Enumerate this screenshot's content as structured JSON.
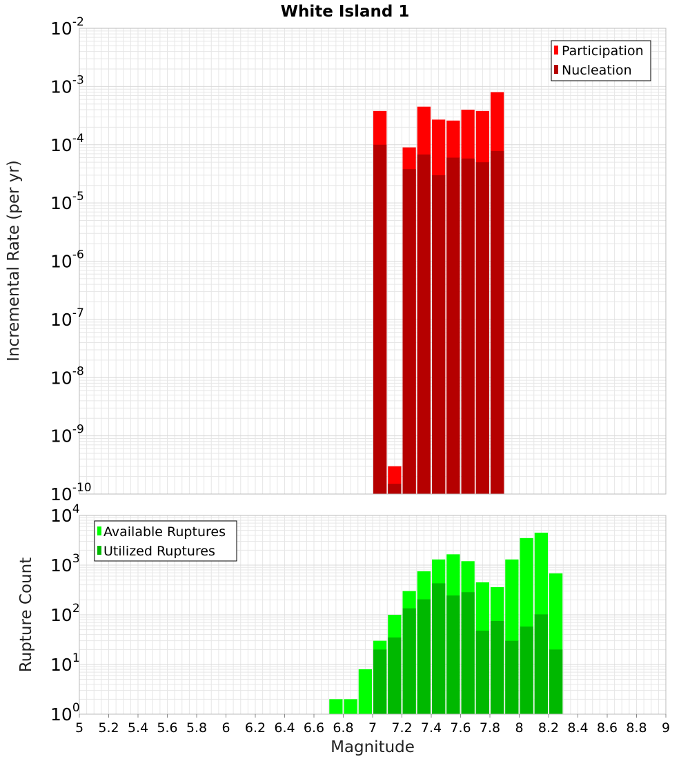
{
  "title": "White Island 1",
  "xlabel": "Magnitude",
  "x_ticks": [
    "5",
    "5.2",
    "5.4",
    "5.6",
    "5.8",
    "6",
    "6.2",
    "6.4",
    "6.6",
    "6.8",
    "7",
    "7.2",
    "7.4",
    "7.6",
    "7.8",
    "8",
    "8.2",
    "8.4",
    "8.6",
    "8.8",
    "9"
  ],
  "colors": {
    "participation": "#ff0000",
    "nucleation": "#b50000",
    "available": "#00ff00",
    "utilized": "#00b800",
    "grid": "#e6e6e6",
    "frame": "#bbbbbb"
  },
  "chart_data": [
    {
      "type": "bar",
      "scale": "log",
      "ylabel": "Incremental Rate (per yr)",
      "xlim": [
        5,
        9
      ],
      "ylim": [
        1e-10,
        0.01
      ],
      "y_tick_exponents": [
        "-10",
        "-9",
        "-8",
        "-7",
        "-6",
        "-5",
        "-4",
        "-3",
        "-2"
      ],
      "bin_width": 0.1,
      "legend_position": "top-right",
      "x": [
        7.05,
        7.15,
        7.25,
        7.35,
        7.45,
        7.55,
        7.65,
        7.75,
        7.85
      ],
      "series": [
        {
          "name": "Participation",
          "values": [
            0.00038,
            3e-10,
            9e-05,
            0.00045,
            0.00027,
            0.00026,
            0.0004,
            0.00038,
            0.0008
          ]
        },
        {
          "name": "Nucleation",
          "values": [
            0.0001,
            1.5e-10,
            3.8e-05,
            6.8e-05,
            3e-05,
            6e-05,
            5.8e-05,
            5e-05,
            7.8e-05
          ]
        }
      ]
    },
    {
      "type": "bar",
      "scale": "log",
      "ylabel": "Rupture Count",
      "xlim": [
        5,
        9
      ],
      "ylim": [
        1,
        10000
      ],
      "y_tick_exponents": [
        "0",
        "1",
        "2",
        "3",
        "4"
      ],
      "bin_width": 0.1,
      "legend_position": "top-left",
      "x": [
        6.75,
        6.85,
        6.95,
        7.05,
        7.15,
        7.25,
        7.35,
        7.45,
        7.55,
        7.65,
        7.75,
        7.85,
        7.95,
        8.05,
        8.15,
        8.25
      ],
      "series": [
        {
          "name": "Available Ruptures",
          "values": [
            2,
            2,
            8,
            30,
            100,
            300,
            750,
            1300,
            1650,
            1200,
            450,
            360,
            1300,
            3500,
            4500,
            680
          ]
        },
        {
          "name": "Utilized Ruptures",
          "values": [
            0,
            0,
            0,
            20,
            35,
            135,
            205,
            430,
            245,
            285,
            48,
            75,
            30,
            58,
            102,
            20
          ]
        }
      ]
    }
  ]
}
